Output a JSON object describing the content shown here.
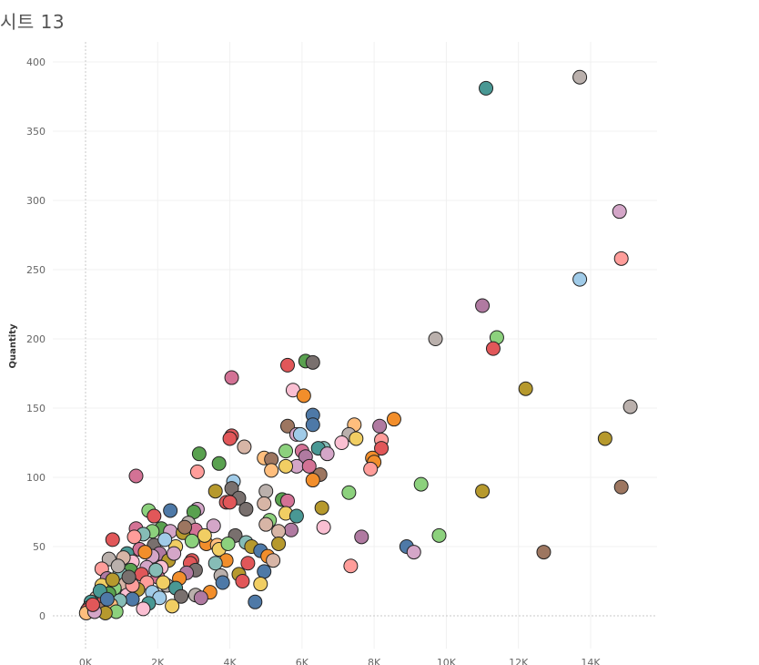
{
  "sheet": {
    "title": "시트 13"
  },
  "chart_data": {
    "type": "scatter",
    "title": "시트 13",
    "xlabel": "",
    "ylabel": "Quantity",
    "xlim": [
      -900,
      16000
    ],
    "ylim": [
      -25,
      415
    ],
    "x_ticks": [
      0,
      2000,
      4000,
      6000,
      8000,
      10000,
      12000,
      14000
    ],
    "x_tick_labels": [
      "0K",
      "2K",
      "4K",
      "6K",
      "8K",
      "10K",
      "12K",
      "14K"
    ],
    "y_ticks": [
      0,
      50,
      100,
      150,
      200,
      250,
      300,
      350,
      400
    ],
    "y_tick_labels": [
      "0",
      "50",
      "100",
      "150",
      "200",
      "250",
      "300",
      "350",
      "400"
    ],
    "grid": true,
    "palette": [
      "#4e79a7",
      "#a0cbe8",
      "#f28e2b",
      "#ffbe7d",
      "#59a14f",
      "#8cd17d",
      "#b6992d",
      "#f1ce63",
      "#499894",
      "#86bcb6",
      "#e15759",
      "#ff9d9a",
      "#79706e",
      "#bab0ac",
      "#d37295",
      "#fabfd2",
      "#b07aa1",
      "#d4a6c8",
      "#9d7660",
      "#d7b5a6"
    ],
    "points": [
      {
        "x": 13700,
        "y": 389,
        "color": "#bab0ac"
      },
      {
        "x": 11100,
        "y": 381,
        "color": "#499894"
      },
      {
        "x": 14800,
        "y": 292,
        "color": "#d4a6c8"
      },
      {
        "x": 14850,
        "y": 258,
        "color": "#ff9d9a"
      },
      {
        "x": 13700,
        "y": 243,
        "color": "#a0cbe8"
      },
      {
        "x": 11000,
        "y": 224,
        "color": "#b07aa1"
      },
      {
        "x": 11400,
        "y": 201,
        "color": "#8cd17d"
      },
      {
        "x": 9700,
        "y": 200,
        "color": "#bab0ac"
      },
      {
        "x": 11300,
        "y": 193,
        "color": "#e15759"
      },
      {
        "x": 6100,
        "y": 184,
        "color": "#59a14f"
      },
      {
        "x": 6300,
        "y": 183,
        "color": "#79706e"
      },
      {
        "x": 5600,
        "y": 181,
        "color": "#e15759"
      },
      {
        "x": 4050,
        "y": 172,
        "color": "#d37295"
      },
      {
        "x": 12200,
        "y": 164,
        "color": "#b6992d"
      },
      {
        "x": 5750,
        "y": 163,
        "color": "#fabfd2"
      },
      {
        "x": 6050,
        "y": 159,
        "color": "#f28e2b"
      },
      {
        "x": 15100,
        "y": 151,
        "color": "#bab0ac"
      },
      {
        "x": 6300,
        "y": 145,
        "color": "#4e79a7"
      },
      {
        "x": 8550,
        "y": 142,
        "color": "#f28e2b"
      },
      {
        "x": 6300,
        "y": 138,
        "color": "#4e79a7"
      },
      {
        "x": 5600,
        "y": 137,
        "color": "#9d7660"
      },
      {
        "x": 8150,
        "y": 137,
        "color": "#b07aa1"
      },
      {
        "x": 7450,
        "y": 138,
        "color": "#ffbe7d"
      },
      {
        "x": 5850,
        "y": 131,
        "color": "#d4a6c8"
      },
      {
        "x": 5950,
        "y": 131,
        "color": "#a0cbe8"
      },
      {
        "x": 4050,
        "y": 130,
        "color": "#e15759"
      },
      {
        "x": 4000,
        "y": 128,
        "color": "#e15759"
      },
      {
        "x": 14400,
        "y": 128,
        "color": "#b6992d"
      },
      {
        "x": 7300,
        "y": 131,
        "color": "#bab0ac"
      },
      {
        "x": 7500,
        "y": 128,
        "color": "#f1ce63"
      },
      {
        "x": 8200,
        "y": 127,
        "color": "#ff9d9a"
      },
      {
        "x": 7100,
        "y": 125,
        "color": "#fabfd2"
      },
      {
        "x": 4400,
        "y": 122,
        "color": "#d7b5a6"
      },
      {
        "x": 6600,
        "y": 121,
        "color": "#86bcb6"
      },
      {
        "x": 8200,
        "y": 121,
        "color": "#e15759"
      },
      {
        "x": 6450,
        "y": 121,
        "color": "#499894"
      },
      {
        "x": 6000,
        "y": 119,
        "color": "#d37295"
      },
      {
        "x": 5550,
        "y": 119,
        "color": "#8cd17d"
      },
      {
        "x": 3150,
        "y": 117,
        "color": "#59a14f"
      },
      {
        "x": 6700,
        "y": 117,
        "color": "#d4a6c8"
      },
      {
        "x": 6100,
        "y": 115,
        "color": "#b07aa1"
      },
      {
        "x": 7950,
        "y": 114,
        "color": "#f28e2b"
      },
      {
        "x": 4950,
        "y": 114,
        "color": "#ffbe7d"
      },
      {
        "x": 5150,
        "y": 113,
        "color": "#9d7660"
      },
      {
        "x": 8000,
        "y": 111,
        "color": "#f28e2b"
      },
      {
        "x": 3700,
        "y": 110,
        "color": "#59a14f"
      },
      {
        "x": 5850,
        "y": 108,
        "color": "#d4a6c8"
      },
      {
        "x": 6200,
        "y": 108,
        "color": "#d37295"
      },
      {
        "x": 5550,
        "y": 108,
        "color": "#f1ce63"
      },
      {
        "x": 7900,
        "y": 106,
        "color": "#ff9d9a"
      },
      {
        "x": 5150,
        "y": 105,
        "color": "#ffbe7d"
      },
      {
        "x": 3100,
        "y": 104,
        "color": "#ff9d9a"
      },
      {
        "x": 6500,
        "y": 102,
        "color": "#9d7660"
      },
      {
        "x": 1400,
        "y": 101,
        "color": "#d37295"
      },
      {
        "x": 6300,
        "y": 98,
        "color": "#f28e2b"
      },
      {
        "x": 4100,
        "y": 97,
        "color": "#a0cbe8"
      },
      {
        "x": 9300,
        "y": 95,
        "color": "#8cd17d"
      },
      {
        "x": 14850,
        "y": 93,
        "color": "#9d7660"
      },
      {
        "x": 4050,
        "y": 92,
        "color": "#79706e"
      },
      {
        "x": 11000,
        "y": 90,
        "color": "#b6992d"
      },
      {
        "x": 5000,
        "y": 90,
        "color": "#bab0ac"
      },
      {
        "x": 3600,
        "y": 90,
        "color": "#b6992d"
      },
      {
        "x": 7300,
        "y": 89,
        "color": "#8cd17d"
      },
      {
        "x": 4250,
        "y": 85,
        "color": "#79706e"
      },
      {
        "x": 5450,
        "y": 84,
        "color": "#59a14f"
      },
      {
        "x": 5600,
        "y": 83,
        "color": "#d37295"
      },
      {
        "x": 3900,
        "y": 82,
        "color": "#e15759"
      },
      {
        "x": 4000,
        "y": 82,
        "color": "#e15759"
      },
      {
        "x": 4950,
        "y": 81,
        "color": "#d7b5a6"
      },
      {
        "x": 6550,
        "y": 78,
        "color": "#b6992d"
      },
      {
        "x": 3100,
        "y": 77,
        "color": "#d4a6c8"
      },
      {
        "x": 4450,
        "y": 77,
        "color": "#79706e"
      },
      {
        "x": 1750,
        "y": 76,
        "color": "#8cd17d"
      },
      {
        "x": 2350,
        "y": 76,
        "color": "#4e79a7"
      },
      {
        "x": 3000,
        "y": 75,
        "color": "#59a14f"
      },
      {
        "x": 5550,
        "y": 74,
        "color": "#f1ce63"
      },
      {
        "x": 1900,
        "y": 72,
        "color": "#e15759"
      },
      {
        "x": 5850,
        "y": 72,
        "color": "#499894"
      },
      {
        "x": 5100,
        "y": 69,
        "color": "#8cd17d"
      },
      {
        "x": 2850,
        "y": 67,
        "color": "#bab0ac"
      },
      {
        "x": 5000,
        "y": 66,
        "color": "#d7b5a6"
      },
      {
        "x": 3550,
        "y": 65,
        "color": "#d4a6c8"
      },
      {
        "x": 6600,
        "y": 64,
        "color": "#fabfd2"
      },
      {
        "x": 2100,
        "y": 63,
        "color": "#59a14f"
      },
      {
        "x": 1400,
        "y": 63,
        "color": "#d37295"
      },
      {
        "x": 5700,
        "y": 62,
        "color": "#b07aa1"
      },
      {
        "x": 3050,
        "y": 62,
        "color": "#d37295"
      },
      {
        "x": 2350,
        "y": 61,
        "color": "#d4a6c8"
      },
      {
        "x": 1850,
        "y": 61,
        "color": "#8cd17d"
      },
      {
        "x": 5350,
        "y": 61,
        "color": "#d7b5a6"
      },
      {
        "x": 2700,
        "y": 60,
        "color": "#b6992d"
      },
      {
        "x": 1600,
        "y": 59,
        "color": "#86bcb6"
      },
      {
        "x": 9800,
        "y": 58,
        "color": "#8cd17d"
      },
      {
        "x": 4150,
        "y": 58,
        "color": "#79706e"
      },
      {
        "x": 7650,
        "y": 57,
        "color": "#b07aa1"
      },
      {
        "x": 1350,
        "y": 57,
        "color": "#ff9d9a"
      },
      {
        "x": 750,
        "y": 55,
        "color": "#e15759"
      },
      {
        "x": 2950,
        "y": 54,
        "color": "#8cd17d"
      },
      {
        "x": 4450,
        "y": 53,
        "color": "#86bcb6"
      },
      {
        "x": 3350,
        "y": 52,
        "color": "#f28e2b"
      },
      {
        "x": 3650,
        "y": 51,
        "color": "#ffbe7d"
      },
      {
        "x": 1900,
        "y": 51,
        "color": "#79706e"
      },
      {
        "x": 4600,
        "y": 50,
        "color": "#b6992d"
      },
      {
        "x": 5350,
        "y": 52,
        "color": "#b6992d"
      },
      {
        "x": 2500,
        "y": 50,
        "color": "#f1ce63"
      },
      {
        "x": 8900,
        "y": 50,
        "color": "#4e79a7"
      },
      {
        "x": 3700,
        "y": 48,
        "color": "#f1ce63"
      },
      {
        "x": 1500,
        "y": 48,
        "color": "#d37295"
      },
      {
        "x": 4850,
        "y": 47,
        "color": "#4e79a7"
      },
      {
        "x": 9100,
        "y": 46,
        "color": "#d4a6c8"
      },
      {
        "x": 12700,
        "y": 46,
        "color": "#9d7660"
      },
      {
        "x": 2050,
        "y": 45,
        "color": "#b07aa1"
      },
      {
        "x": 1150,
        "y": 45,
        "color": "#499894"
      },
      {
        "x": 5050,
        "y": 43,
        "color": "#f28e2b"
      },
      {
        "x": 1850,
        "y": 43,
        "color": "#d4a6c8"
      },
      {
        "x": 650,
        "y": 41,
        "color": "#bab0ac"
      },
      {
        "x": 2950,
        "y": 40,
        "color": "#e15759"
      },
      {
        "x": 5200,
        "y": 40,
        "color": "#d7b5a6"
      },
      {
        "x": 3900,
        "y": 40,
        "color": "#f28e2b"
      },
      {
        "x": 2300,
        "y": 40,
        "color": "#b6992d"
      },
      {
        "x": 1300,
        "y": 39,
        "color": "#fabfd2"
      },
      {
        "x": 4500,
        "y": 38,
        "color": "#e15759"
      },
      {
        "x": 3600,
        "y": 38,
        "color": "#86bcb6"
      },
      {
        "x": 2900,
        "y": 38,
        "color": "#e15759"
      },
      {
        "x": 7350,
        "y": 36,
        "color": "#ff9d9a"
      },
      {
        "x": 2100,
        "y": 35,
        "color": "#fabfd2"
      },
      {
        "x": 1700,
        "y": 35,
        "color": "#d4a6c8"
      },
      {
        "x": 450,
        "y": 34,
        "color": "#ff9d9a"
      },
      {
        "x": 3050,
        "y": 33,
        "color": "#79706e"
      },
      {
        "x": 1250,
        "y": 33,
        "color": "#59a14f"
      },
      {
        "x": 4950,
        "y": 32,
        "color": "#4e79a7"
      },
      {
        "x": 2800,
        "y": 31,
        "color": "#b07aa1"
      },
      {
        "x": 950,
        "y": 31,
        "color": "#86bcb6"
      },
      {
        "x": 4250,
        "y": 30,
        "color": "#b6992d"
      },
      {
        "x": 1550,
        "y": 30,
        "color": "#e15759"
      },
      {
        "x": 3750,
        "y": 29,
        "color": "#bab0ac"
      },
      {
        "x": 2000,
        "y": 28,
        "color": "#d37295"
      },
      {
        "x": 2600,
        "y": 27,
        "color": "#f28e2b"
      },
      {
        "x": 600,
        "y": 27,
        "color": "#b07aa1"
      },
      {
        "x": 4350,
        "y": 25,
        "color": "#e15759"
      },
      {
        "x": 3800,
        "y": 24,
        "color": "#4e79a7"
      },
      {
        "x": 1700,
        "y": 24,
        "color": "#ff9d9a"
      },
      {
        "x": 1100,
        "y": 23,
        "color": "#d7b5a6"
      },
      {
        "x": 4850,
        "y": 23,
        "color": "#f1ce63"
      },
      {
        "x": 2250,
        "y": 22,
        "color": "#bab0ac"
      },
      {
        "x": 450,
        "y": 22,
        "color": "#f1ce63"
      },
      {
        "x": 2500,
        "y": 20,
        "color": "#499894"
      },
      {
        "x": 800,
        "y": 20,
        "color": "#8cd17d"
      },
      {
        "x": 1450,
        "y": 19,
        "color": "#b6992d"
      },
      {
        "x": 3450,
        "y": 17,
        "color": "#f28e2b"
      },
      {
        "x": 1850,
        "y": 17,
        "color": "#a0cbe8"
      },
      {
        "x": 650,
        "y": 16,
        "color": "#59a14f"
      },
      {
        "x": 3050,
        "y": 15,
        "color": "#bab0ac"
      },
      {
        "x": 1150,
        "y": 15,
        "color": "#fabfd2"
      },
      {
        "x": 2650,
        "y": 14,
        "color": "#79706e"
      },
      {
        "x": 3200,
        "y": 13,
        "color": "#b07aa1"
      },
      {
        "x": 2050,
        "y": 13,
        "color": "#a0cbe8"
      },
      {
        "x": 300,
        "y": 13,
        "color": "#d7b5a6"
      },
      {
        "x": 1300,
        "y": 12,
        "color": "#4e79a7"
      },
      {
        "x": 950,
        "y": 11,
        "color": "#86bcb6"
      },
      {
        "x": 500,
        "y": 10,
        "color": "#e15759"
      },
      {
        "x": 4700,
        "y": 10,
        "color": "#4e79a7"
      },
      {
        "x": 150,
        "y": 10,
        "color": "#499894"
      },
      {
        "x": 1750,
        "y": 9,
        "color": "#499894"
      },
      {
        "x": 700,
        "y": 8,
        "color": "#ffbe7d"
      },
      {
        "x": 2400,
        "y": 7,
        "color": "#f1ce63"
      },
      {
        "x": 100,
        "y": 6,
        "color": "#79706e"
      },
      {
        "x": 1600,
        "y": 5,
        "color": "#fabfd2"
      },
      {
        "x": 350,
        "y": 5,
        "color": "#9d7660"
      },
      {
        "x": 50,
        "y": 4,
        "color": "#e15759"
      },
      {
        "x": 850,
        "y": 3,
        "color": "#8cd17d"
      },
      {
        "x": 550,
        "y": 2,
        "color": "#b6992d"
      },
      {
        "x": 20,
        "y": 2,
        "color": "#ffbe7d"
      },
      {
        "x": 250,
        "y": 3,
        "color": "#d4a6c8"
      },
      {
        "x": 1300,
        "y": 22,
        "color": "#ff9d9a"
      },
      {
        "x": 2200,
        "y": 55,
        "color": "#a0cbe8"
      },
      {
        "x": 1050,
        "y": 42,
        "color": "#d7b5a6"
      },
      {
        "x": 2750,
        "y": 64,
        "color": "#9d7660"
      },
      {
        "x": 3300,
        "y": 58,
        "color": "#f1ce63"
      },
      {
        "x": 1650,
        "y": 46,
        "color": "#f28e2b"
      },
      {
        "x": 900,
        "y": 36,
        "color": "#bab0ac"
      },
      {
        "x": 400,
        "y": 18,
        "color": "#499894"
      },
      {
        "x": 1950,
        "y": 33,
        "color": "#86bcb6"
      },
      {
        "x": 2450,
        "y": 45,
        "color": "#d4a6c8"
      },
      {
        "x": 750,
        "y": 26,
        "color": "#b6992d"
      },
      {
        "x": 1200,
        "y": 28,
        "color": "#79706e"
      },
      {
        "x": 200,
        "y": 8,
        "color": "#e15759"
      },
      {
        "x": 3950,
        "y": 52,
        "color": "#8cd17d"
      },
      {
        "x": 2150,
        "y": 24,
        "color": "#f1ce63"
      },
      {
        "x": 600,
        "y": 12,
        "color": "#4e79a7"
      }
    ]
  }
}
